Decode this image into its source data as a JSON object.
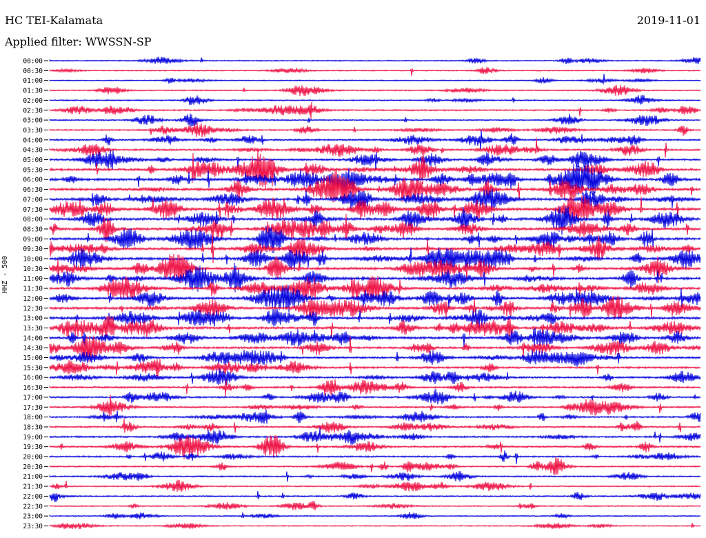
{
  "header": {
    "station": "HC TEI-Kalamata",
    "date": "2019-11-01",
    "filter": "Applied filter: WWSSN-SP"
  },
  "colors": {
    "even_rows": "#0000dd",
    "odd_rows": "#ee1144"
  },
  "chart_data": {
    "type": "line",
    "title": "HC TEI-Kalamata",
    "subtitle": "Applied filter: WWSSN-SP",
    "ylabel": "HHZ - 500",
    "xlabel": "",
    "row_labels": [
      "00:00",
      "00:30",
      "01:00",
      "01:30",
      "02:00",
      "02:30",
      "03:00",
      "03:30",
      "04:00",
      "04:30",
      "05:00",
      "05:30",
      "06:00",
      "06:30",
      "07:00",
      "07:30",
      "08:00",
      "08:30",
      "09:00",
      "09:30",
      "10:00",
      "10:30",
      "11:00",
      "11:30",
      "12:00",
      "12:30",
      "13:00",
      "13:30",
      "14:00",
      "14:30",
      "15:00",
      "15:30",
      "16:00",
      "16:30",
      "17:00",
      "17:30",
      "18:00",
      "18:30",
      "19:00",
      "19:30",
      "20:00",
      "20:30",
      "21:00",
      "21:30",
      "22:00",
      "22:30",
      "23:00",
      "23:30"
    ],
    "row_colors_cycle": [
      "blue",
      "red"
    ],
    "activity_level": [
      0.15,
      0.1,
      0.12,
      0.18,
      0.2,
      0.35,
      0.25,
      0.4,
      0.5,
      0.55,
      0.6,
      0.8,
      0.95,
      0.9,
      0.95,
      0.95,
      0.9,
      0.9,
      0.85,
      0.9,
      0.95,
      0.9,
      0.9,
      0.8,
      0.85,
      0.9,
      0.9,
      0.85,
      0.8,
      0.7,
      0.6,
      0.6,
      0.55,
      0.55,
      0.5,
      0.45,
      0.45,
      0.45,
      0.5,
      0.5,
      0.4,
      0.35,
      0.3,
      0.25,
      0.25,
      0.2,
      0.15,
      0.1
    ]
  }
}
